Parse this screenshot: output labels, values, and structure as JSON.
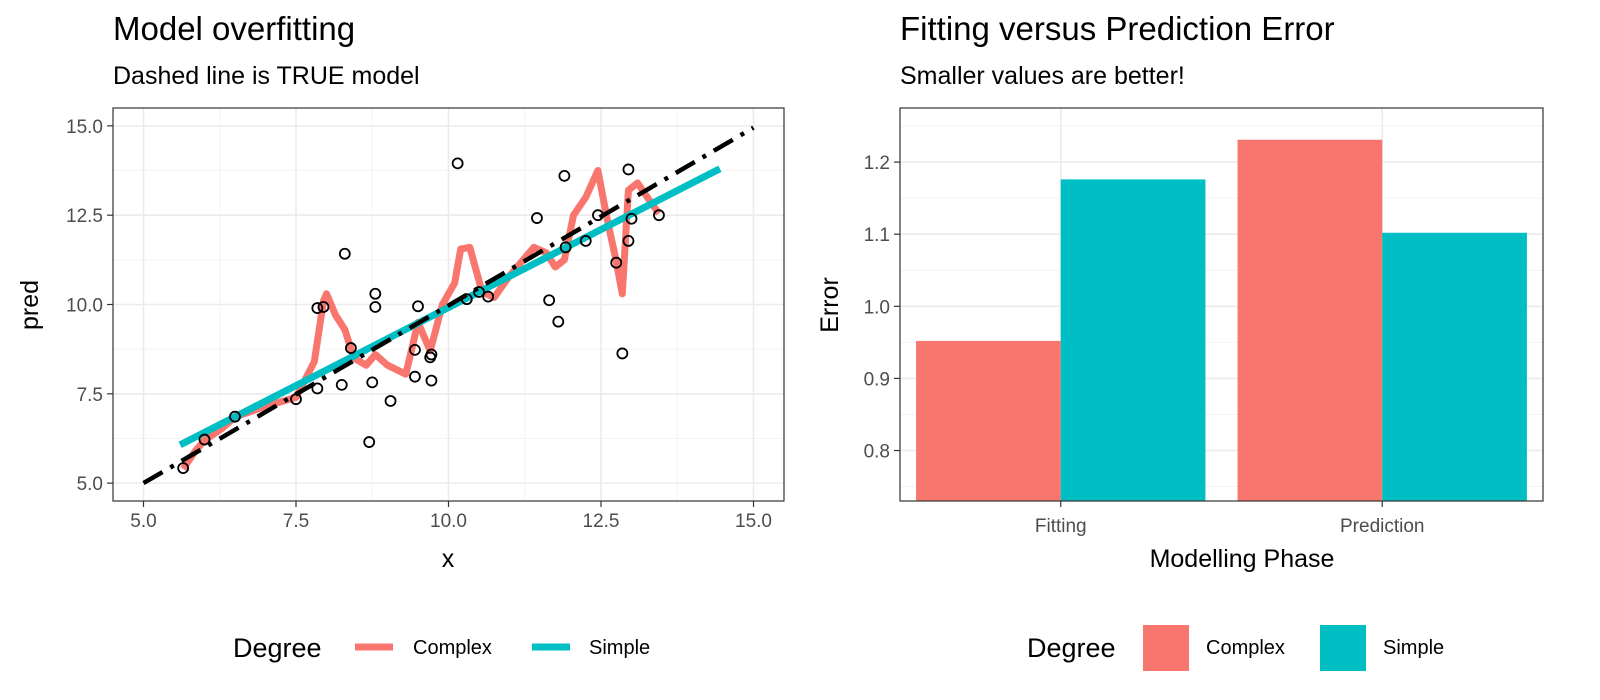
{
  "colors": {
    "complex": "#F8766D",
    "simple": "#00BFC4",
    "true_line": "#000000"
  },
  "chart_data": [
    {
      "type": "line+scatter",
      "title": "Model overfitting",
      "subtitle": "Dashed line is TRUE model",
      "xlabel": "x",
      "ylabel": "pred",
      "xlim": [
        4.5,
        15.5
      ],
      "ylim": [
        4.5,
        15.5
      ],
      "xticks": [
        5.0,
        7.5,
        10.0,
        12.5,
        15.0
      ],
      "xtick_labels": [
        "5.0",
        "7.5",
        "10.0",
        "12.5",
        "15.0"
      ],
      "yticks": [
        5.0,
        7.5,
        10.0,
        12.5,
        15.0
      ],
      "ytick_labels": [
        "5.0",
        "7.5",
        "10.0",
        "12.5",
        "15.0"
      ],
      "grid": true,
      "points": [
        {
          "x": 5.65,
          "y": 5.42
        },
        {
          "x": 6.0,
          "y": 6.22
        },
        {
          "x": 6.5,
          "y": 6.86
        },
        {
          "x": 7.5,
          "y": 7.35
        },
        {
          "x": 7.85,
          "y": 7.65
        },
        {
          "x": 7.85,
          "y": 9.9
        },
        {
          "x": 7.95,
          "y": 9.93
        },
        {
          "x": 8.3,
          "y": 11.42
        },
        {
          "x": 8.25,
          "y": 7.75
        },
        {
          "x": 8.4,
          "y": 8.78
        },
        {
          "x": 8.7,
          "y": 6.15
        },
        {
          "x": 8.75,
          "y": 7.82
        },
        {
          "x": 8.8,
          "y": 10.3
        },
        {
          "x": 8.8,
          "y": 9.93
        },
        {
          "x": 9.05,
          "y": 7.3
        },
        {
          "x": 9.45,
          "y": 8.73
        },
        {
          "x": 9.45,
          "y": 7.98
        },
        {
          "x": 9.5,
          "y": 9.95
        },
        {
          "x": 9.7,
          "y": 8.52
        },
        {
          "x": 9.72,
          "y": 8.6
        },
        {
          "x": 9.72,
          "y": 7.87
        },
        {
          "x": 10.15,
          "y": 13.95
        },
        {
          "x": 10.3,
          "y": 10.15
        },
        {
          "x": 10.5,
          "y": 10.35
        },
        {
          "x": 10.65,
          "y": 10.22
        },
        {
          "x": 11.45,
          "y": 12.42
        },
        {
          "x": 11.65,
          "y": 10.12
        },
        {
          "x": 11.8,
          "y": 9.52
        },
        {
          "x": 11.9,
          "y": 13.6
        },
        {
          "x": 11.92,
          "y": 11.6
        },
        {
          "x": 12.25,
          "y": 11.78
        },
        {
          "x": 12.45,
          "y": 12.5
        },
        {
          "x": 12.75,
          "y": 11.17
        },
        {
          "x": 12.85,
          "y": 8.63
        },
        {
          "x": 12.95,
          "y": 11.78
        },
        {
          "x": 12.95,
          "y": 13.78
        },
        {
          "x": 13.0,
          "y": 12.4
        },
        {
          "x": 13.45,
          "y": 12.5
        }
      ],
      "series": [
        {
          "name": "Complex",
          "x": [
            5.65,
            5.85,
            6.0,
            6.3,
            6.5,
            7.0,
            7.5,
            7.8,
            7.95,
            8.0,
            8.15,
            8.3,
            8.45,
            8.65,
            8.8,
            9.0,
            9.3,
            9.5,
            9.7,
            9.9,
            10.1,
            10.2,
            10.35,
            10.55,
            10.75,
            11.0,
            11.2,
            11.4,
            11.6,
            11.75,
            11.9,
            12.05,
            12.25,
            12.45,
            12.6,
            12.75,
            12.85,
            12.95,
            13.1,
            13.3,
            13.45
          ],
          "y": [
            5.4,
            5.9,
            6.2,
            6.55,
            6.85,
            7.15,
            7.4,
            8.4,
            10.1,
            10.3,
            9.7,
            9.3,
            8.5,
            8.3,
            8.6,
            8.3,
            8.05,
            9.5,
            8.7,
            10.0,
            10.6,
            11.55,
            11.6,
            10.35,
            10.2,
            10.8,
            11.2,
            11.6,
            11.45,
            11.05,
            11.25,
            12.5,
            13.0,
            13.75,
            12.4,
            11.2,
            10.3,
            13.2,
            13.4,
            12.9,
            12.55
          ]
        },
        {
          "name": "Simple",
          "x": [
            5.6,
            14.45
          ],
          "y": [
            6.07,
            13.8
          ]
        },
        {
          "name": "TRUE",
          "x": [
            5.0,
            15.0
          ],
          "y": [
            5.0,
            14.95
          ]
        }
      ],
      "legend": {
        "title": "Degree",
        "position": "bottom",
        "entries": [
          "Complex",
          "Simple"
        ]
      }
    },
    {
      "type": "bar",
      "title": "Fitting versus Prediction Error",
      "subtitle": "Smaller values are better!",
      "xlabel": "Modelling Phase",
      "ylabel": "Error",
      "categories": [
        "Fitting",
        "Prediction"
      ],
      "series": [
        {
          "name": "Complex",
          "values": [
            0.952,
            1.231
          ]
        },
        {
          "name": "Simple",
          "values": [
            1.176,
            1.102
          ]
        }
      ],
      "ylim": [
        0.73,
        1.275
      ],
      "yticks": [
        0.8,
        0.9,
        1.0,
        1.1,
        1.2
      ],
      "ytick_labels": [
        "0.8",
        "0.9",
        "1.0",
        "1.1",
        "1.2"
      ],
      "grid": true,
      "legend": {
        "title": "Degree",
        "position": "bottom",
        "entries": [
          "Complex",
          "Simple"
        ]
      }
    }
  ]
}
